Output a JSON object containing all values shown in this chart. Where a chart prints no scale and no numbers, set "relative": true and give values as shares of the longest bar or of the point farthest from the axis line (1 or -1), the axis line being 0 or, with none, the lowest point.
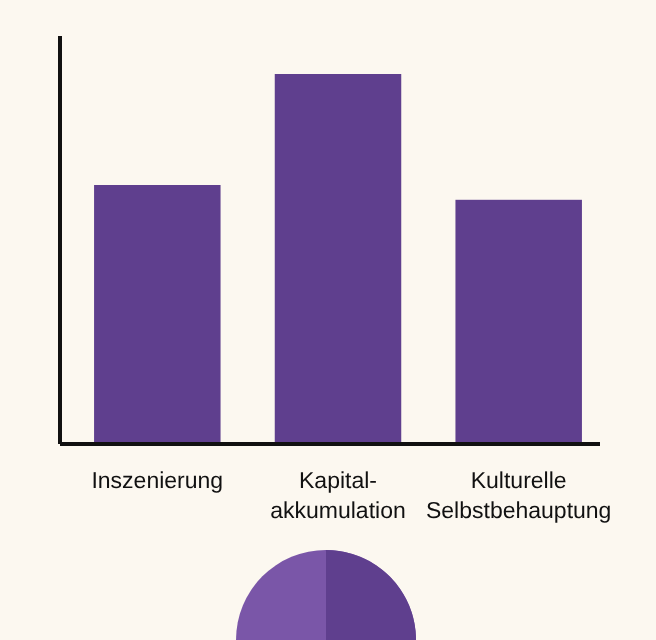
{
  "chart_data": {
    "type": "bar",
    "relative": true,
    "categories": [
      "Inszenierung",
      "Kapital-\nakkumulation",
      "Kulturelle\nSelbstbehauptung"
    ],
    "values": [
      0.7,
      1,
      0.66
    ],
    "color": "#5f3f8e"
  }
}
